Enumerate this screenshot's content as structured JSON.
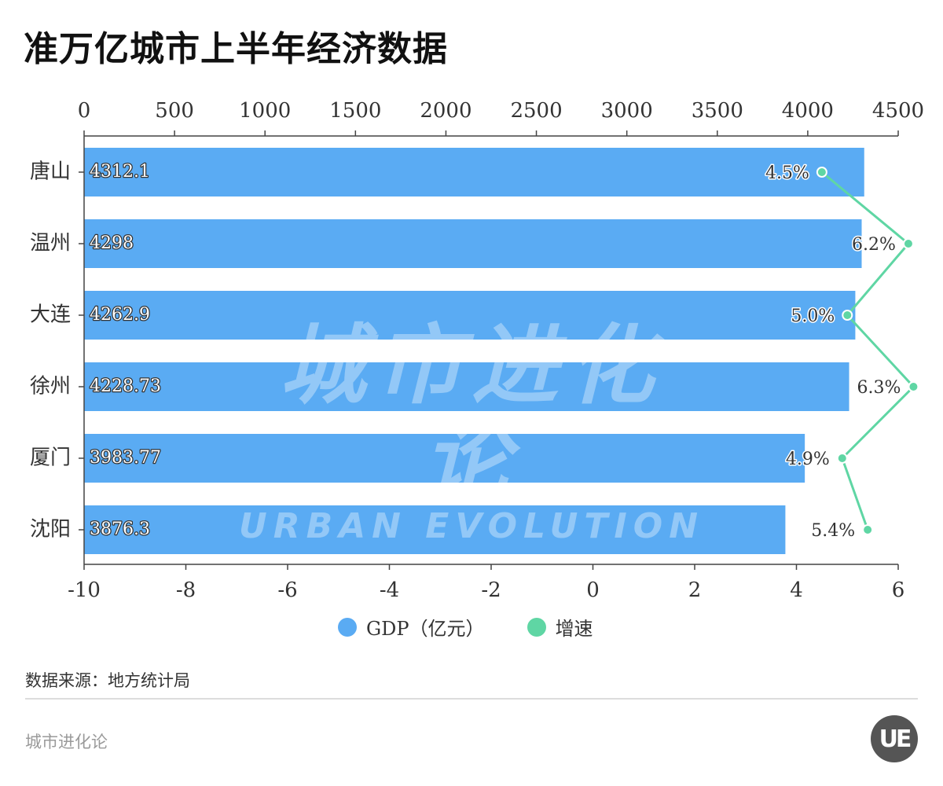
{
  "title": "准万亿城市上半年经济数据",
  "chart_data": {
    "type": "bar",
    "orientation": "horizontal",
    "categories": [
      "唐山",
      "温州",
      "大连",
      "徐州",
      "厦门",
      "沈阳"
    ],
    "series": [
      {
        "name": "GDP（亿元）",
        "type": "bar",
        "axis": "top",
        "values": [
          4312.1,
          4298,
          4262.9,
          4228.73,
          3983.77,
          3876.3
        ],
        "labels": [
          "4312.1",
          "4298",
          "4262.9",
          "4228.73",
          "3983.77",
          "3876.3"
        ],
        "color": "#5aabf3"
      },
      {
        "name": "增速",
        "type": "line",
        "axis": "bottom",
        "values": [
          4.5,
          6.2,
          5.0,
          6.3,
          4.9,
          5.4
        ],
        "labels": [
          "4.5%",
          "6.2%",
          "5.0%",
          "6.3%",
          "4.9%",
          "5.4%"
        ],
        "color": "#5fd6a4"
      }
    ],
    "top_axis": {
      "min": 0,
      "max": 4500,
      "ticks": [
        "0",
        "500",
        "1000",
        "1500",
        "2000",
        "2500",
        "3000",
        "3500",
        "4000",
        "4500"
      ]
    },
    "bottom_axis": {
      "min": -10,
      "max": 6,
      "ticks": [
        "-10",
        "-8",
        "-6",
        "-4",
        "-2",
        "0",
        "2",
        "4",
        "6"
      ]
    },
    "legend_position": "bottom-center"
  },
  "legend": [
    {
      "label": "GDP（亿元）",
      "color": "#5aabf3"
    },
    {
      "label": "增速",
      "color": "#5fd6a4"
    }
  ],
  "watermark": {
    "cn": "城市进化论",
    "en": "URBAN EVOLUTION"
  },
  "source": "数据来源：地方统计局",
  "footer_brand": "城市进化论",
  "logo_text": "UE"
}
